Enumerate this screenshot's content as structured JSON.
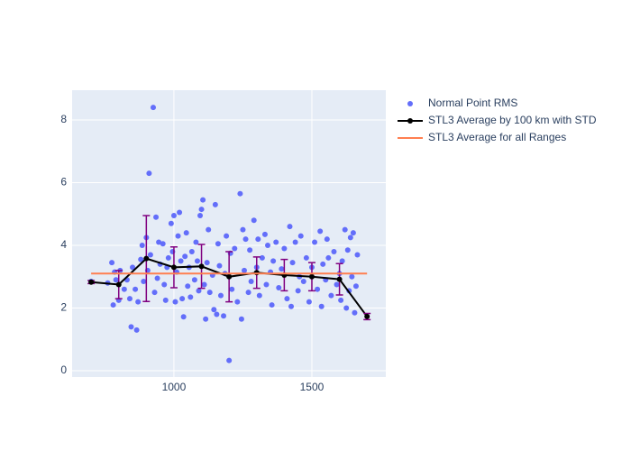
{
  "chart_data": {
    "type": "scatter",
    "xlim": [
      631,
      1768
    ],
    "ylim": [
      -0.2,
      8.95
    ],
    "xticks": [
      1000,
      1500
    ],
    "yticks": [
      0,
      2,
      4,
      6,
      8
    ],
    "grid": true,
    "legend": "right",
    "series": [
      {
        "name": "Normal Point RMS",
        "color": "#636efa",
        "mode": "markers",
        "x": [
          700,
          760,
          775,
          780,
          785,
          790,
          800,
          805,
          820,
          830,
          840,
          845,
          850,
          860,
          865,
          870,
          880,
          885,
          890,
          900,
          905,
          910,
          915,
          925,
          930,
          935,
          940,
          945,
          950,
          960,
          965,
          970,
          975,
          980,
          990,
          995,
          1000,
          1005,
          1010,
          1015,
          1020,
          1025,
          1030,
          1035,
          1040,
          1045,
          1050,
          1055,
          1060,
          1065,
          1075,
          1080,
          1085,
          1090,
          1095,
          1100,
          1105,
          1110,
          1115,
          1120,
          1125,
          1130,
          1140,
          1145,
          1150,
          1155,
          1160,
          1165,
          1170,
          1180,
          1185,
          1190,
          1200,
          1205,
          1210,
          1220,
          1230,
          1240,
          1245,
          1250,
          1255,
          1260,
          1270,
          1275,
          1280,
          1290,
          1300,
          1305,
          1310,
          1320,
          1330,
          1335,
          1340,
          1350,
          1355,
          1360,
          1370,
          1380,
          1390,
          1400,
          1410,
          1420,
          1425,
          1430,
          1440,
          1450,
          1455,
          1460,
          1470,
          1480,
          1490,
          1500,
          1510,
          1520,
          1530,
          1535,
          1540,
          1550,
          1555,
          1560,
          1570,
          1580,
          1590,
          1600,
          1605,
          1610,
          1620,
          1625,
          1630,
          1635,
          1640,
          1645,
          1650,
          1655,
          1660,
          1665
        ],
        "values": [
          2.85,
          2.8,
          3.45,
          2.1,
          3.15,
          2.9,
          2.25,
          3.2,
          2.6,
          2.9,
          2.3,
          1.4,
          3.3,
          2.6,
          1.3,
          2.2,
          3.55,
          4.0,
          2.85,
          4.25,
          3.2,
          6.3,
          3.7,
          8.4,
          2.5,
          4.9,
          2.95,
          4.1,
          3.4,
          4.05,
          2.75,
          2.25,
          3.3,
          3.6,
          4.7,
          3.8,
          4.95,
          2.2,
          3.15,
          4.3,
          5.05,
          3.5,
          2.3,
          1.72,
          3.65,
          4.4,
          2.7,
          3.3,
          2.35,
          3.8,
          2.9,
          4.1,
          3.5,
          2.55,
          4.95,
          5.15,
          5.45,
          2.75,
          1.65,
          3.45,
          4.5,
          2.5,
          3.05,
          1.95,
          5.3,
          1.8,
          4.05,
          3.35,
          2.4,
          1.75,
          3.1,
          4.3,
          0.33,
          3.75,
          2.6,
          3.9,
          2.2,
          5.65,
          1.65,
          4.5,
          3.2,
          4.2,
          2.5,
          3.85,
          2.85,
          4.8,
          3.3,
          4.2,
          2.4,
          3.6,
          4.35,
          2.75,
          4.0,
          3.15,
          2.1,
          3.5,
          4.1,
          2.65,
          3.25,
          3.9,
          2.3,
          4.6,
          2.05,
          3.45,
          4.1,
          2.55,
          3.0,
          4.3,
          2.85,
          3.6,
          2.2,
          3.3,
          4.1,
          2.6,
          4.45,
          2.05,
          3.4,
          2.9,
          4.2,
          3.6,
          2.4,
          3.8,
          2.75,
          3.1,
          2.25,
          3.5,
          4.5,
          2.0,
          3.85,
          2.55,
          4.25,
          3.0,
          4.4,
          1.85,
          2.7,
          3.7
        ]
      },
      {
        "name": "STL3 Average by 100 km with STD",
        "color": "#000000",
        "mode": "lines+markers",
        "error_color": "#800080",
        "x": [
          700,
          800,
          900,
          1000,
          1100,
          1200,
          1300,
          1400,
          1500,
          1600,
          1700
        ],
        "values": [
          2.83,
          2.75,
          3.58,
          3.3,
          3.33,
          3.0,
          3.13,
          3.05,
          3.0,
          2.92,
          1.73
        ],
        "error": [
          0.05,
          0.45,
          1.37,
          0.65,
          0.7,
          0.8,
          0.5,
          0.5,
          0.45,
          0.5,
          0.1
        ]
      },
      {
        "name": "STL3 Average for all Ranges",
        "color": "#ff7f50",
        "mode": "lines",
        "x": [
          700,
          1700
        ],
        "values": [
          3.1,
          3.1
        ]
      }
    ]
  }
}
